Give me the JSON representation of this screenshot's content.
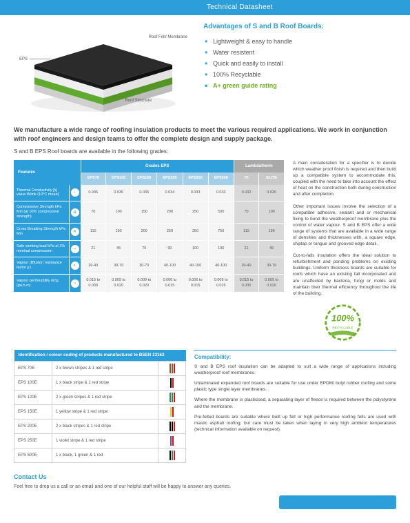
{
  "header_bar": "Technical Datasheet",
  "diagram": {
    "label_eps": "EPS",
    "label_felt": "Roof Felt/\nMembrane",
    "label_structure": "Roof\nStructure"
  },
  "advantages": {
    "title": "Advantages of S and B Roof Boards:",
    "items": [
      "Lightweight & easy to handle",
      "Water resistent",
      "Quick and easily to install",
      "100% Recyclable"
    ],
    "green_item": "A+ green guide rating"
  },
  "intro": "We manufacture a wide range of roofing insulation products to meet the various required applications. We work in conjunction with roof engineers and design teams to offer the complete design and supply package.",
  "sub_intro": "S and B EPS Roof boards are available in the following grades:",
  "spec_table": {
    "group_features": "Features",
    "group_eps": "Grades EPS",
    "group_lt": "Lambdatherm",
    "cols": [
      "EPS70",
      "EPS100",
      "EPS150",
      "EPS200",
      "EPS250",
      "EPS500",
      "70",
      "ELITE"
    ],
    "rows": [
      {
        "feat": "Thermal Conductivity\n[k] value W/mk (10°C mean)",
        "icon": "↓",
        "vals": [
          "0.036",
          "0.036",
          "0.035",
          "0.034",
          "0.033",
          "0.033",
          "0.032",
          "0.030"
        ]
      },
      {
        "feat": "Compressive Strength\nkPa Min (at 10% compressive strength)",
        "icon": "⇊",
        "vals": [
          "70",
          "100",
          "150",
          "200",
          "250",
          "500",
          "70",
          "100"
        ]
      },
      {
        "feat": "Cross Breaking Strength\nkPa Min",
        "icon": "✕",
        "vals": [
          "115",
          "150",
          "200",
          "250",
          "350",
          "750",
          "115",
          "190"
        ]
      },
      {
        "feat": "Safe working load kPa at 1% nominal compression",
        "icon": "↔",
        "vals": [
          "21",
          "45",
          "70",
          "90",
          "100",
          "190",
          "21",
          "45"
        ]
      },
      {
        "feat": "Vapour diffusion resistance factor µ1",
        "icon": "◐",
        "vals": [
          "26-40",
          "30-70",
          "30-70",
          "40-100",
          "40-100",
          "40-100",
          "20-40",
          "30-70"
        ]
      },
      {
        "feat": "Vapour permeability δmg (pa.h.m)",
        "icon": "○",
        "vals": [
          "0.015 to 0.030",
          "0.009 to 0.020",
          "0.009 to 0.020",
          "0.006 to 0.015",
          "0.006 to 0.015",
          "0.009 to 0.015",
          "0.015 to 0.030",
          "0.009 to 0.020"
        ]
      }
    ]
  },
  "side_paragraphs": [
    "A main consideration for a specifier is to decide which weather proof finish is required and then build up a compatible system to accommodate this, coupled with the need to take into account the effect of heat on the construction both during construction and after completion.",
    "Other important issues involve the selection of a compatible adhesive, sealant and or mechanical fixing to bond the weatherproof membrane plus the control of water vapour. S and B EPS offer a wide range of systems that are available in a wide range of densities and thicknesses with, a square edge, shiplap or tongue and grooved edge detail.",
    "Cut-to-falls insulation offers the ideal solution to refurbishment and ponding problems on existing buildings. Uniform thickness boards are suitable for roofs which have an existing fall incorporated and are unaffected by bacteria, fungi or molds and maintain their thermal efficiency throughout the life of the building."
  ],
  "ident": {
    "header": "Identification / colour coding of products manufactured to BSEN 13163",
    "rows": [
      {
        "code": "EPS 70E",
        "desc": "2 x brown stripes & 1 red stripe",
        "colors": [
          "#8b5a2b",
          "#8b5a2b",
          "#d11"
        ]
      },
      {
        "code": "EPS 100E",
        "desc": "1 x black stripe & 1 red stripe",
        "colors": [
          "#000",
          "#d11"
        ]
      },
      {
        "code": "EPS 120E",
        "desc": "2 x green stripes & 1 red stripe",
        "colors": [
          "#2e8b57",
          "#2e8b57",
          "#d11"
        ]
      },
      {
        "code": "EPS 150E",
        "desc": "1 yellow stripe & 1 red stripe",
        "colors": [
          "#f2c40f",
          "#d11"
        ]
      },
      {
        "code": "EPS 200E",
        "desc": "2 x black stripes & 1 red stripe",
        "colors": [
          "#000",
          "#000",
          "#d11"
        ]
      },
      {
        "code": "EPS 250E",
        "desc": "1 violet stripe & 1 red stripe",
        "colors": [
          "#7a3fa0",
          "#d11"
        ]
      },
      {
        "code": "EPS 500E",
        "desc": "1 x black, 1 green & 1 red",
        "colors": [
          "#000",
          "#2e8b57",
          "#d11"
        ]
      }
    ]
  },
  "compat": {
    "title": "Compatibility:",
    "paras": [
      "S and B EPS roof insulation can be adapted to suit a wide range of applications including weatherproof roof membranes.",
      "Unlaminated expanded roof boards are suitable for use under EPDM/ butyl rubber roofing and some plastic type single layer membranes.",
      "Where the membrane is plasticised, a separating layer of fleece is required between the polystyrene and the membrane.",
      "Pre-felted boards are suitable where built up felt or high performance roofing felts are used with mastic asphalt roofing, but care must be taken when laying in very high ambient temperatures (technical information available on request)."
    ]
  },
  "contact": {
    "title": "Contact Us",
    "text": "Feel free to drop us a call or an email and one of our helpful staff will be happy to answer any queries."
  },
  "badge_text": "100%",
  "badge_sub": "RECYCLABLE",
  "colors": {
    "primary": "#2c9ed9",
    "grey": "#a9a9a9",
    "green": "#6ab023"
  }
}
